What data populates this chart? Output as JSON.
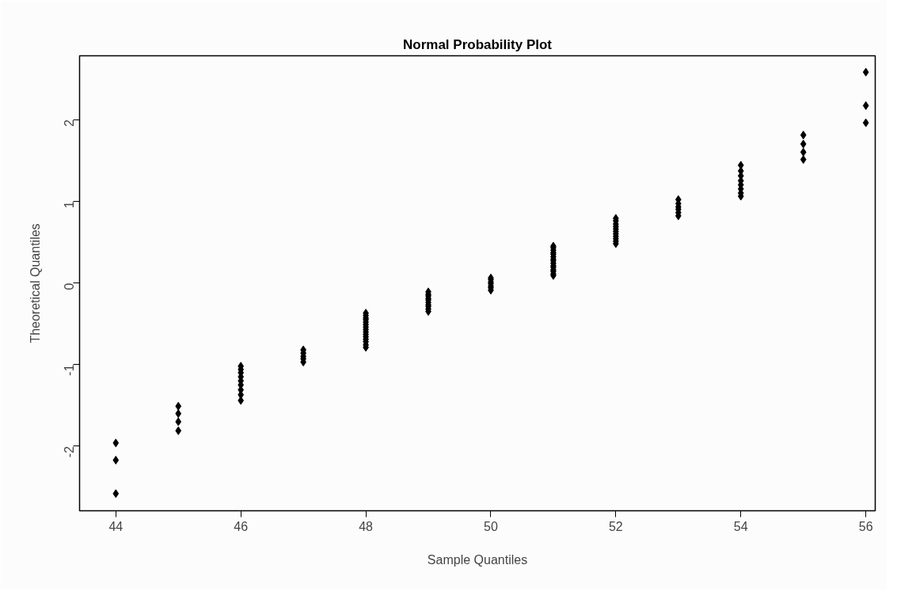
{
  "chart_data": {
    "type": "scatter",
    "title": "Normal Probability Plot",
    "xlabel": "Sample Quantiles",
    "ylabel": "Theoretical Quantiles",
    "x": [
      44,
      44,
      44,
      45,
      45,
      45,
      45,
      46,
      46,
      46,
      46,
      46,
      46,
      46,
      46,
      46,
      47,
      47,
      47,
      47,
      47,
      48,
      48,
      48,
      48,
      48,
      48,
      48,
      48,
      48,
      48,
      48,
      48,
      48,
      48,
      48,
      49,
      49,
      49,
      49,
      49,
      49,
      49,
      49,
      49,
      49,
      50,
      50,
      50,
      50,
      50,
      50,
      50,
      51,
      51,
      51,
      51,
      51,
      51,
      51,
      51,
      51,
      51,
      51,
      51,
      51,
      51,
      51,
      52,
      52,
      52,
      52,
      52,
      52,
      52,
      52,
      52,
      52,
      52,
      53,
      53,
      53,
      53,
      53,
      53,
      54,
      54,
      54,
      54,
      54,
      54,
      54,
      54,
      55,
      55,
      55,
      55,
      56,
      56,
      56
    ],
    "series": [
      {
        "color": "#000000",
        "values": [
          -2.58,
          -2.17,
          -1.96,
          -1.81,
          -1.7,
          -1.6,
          -1.51,
          -1.44,
          -1.37,
          -1.31,
          -1.25,
          -1.2,
          -1.15,
          -1.1,
          -1.06,
          -1.02,
          -0.97,
          -0.93,
          -0.9,
          -0.86,
          -0.82,
          -0.79,
          -0.76,
          -0.72,
          -0.69,
          -0.66,
          -0.63,
          -0.6,
          -0.57,
          -0.54,
          -0.51,
          -0.48,
          -0.45,
          -0.43,
          -0.4,
          -0.37,
          -0.35,
          -0.32,
          -0.29,
          -0.27,
          -0.24,
          -0.21,
          -0.19,
          -0.16,
          -0.14,
          -0.11,
          -0.09,
          -0.06,
          -0.04,
          -0.01,
          0.01,
          0.04,
          0.06,
          0.09,
          0.11,
          0.14,
          0.16,
          0.19,
          0.21,
          0.24,
          0.27,
          0.29,
          0.32,
          0.35,
          0.37,
          0.4,
          0.43,
          0.45,
          0.48,
          0.51,
          0.54,
          0.57,
          0.6,
          0.63,
          0.66,
          0.69,
          0.72,
          0.76,
          0.79,
          0.82,
          0.86,
          0.9,
          0.93,
          0.97,
          1.02,
          1.06,
          1.1,
          1.15,
          1.2,
          1.25,
          1.31,
          1.37,
          1.44,
          1.51,
          1.6,
          1.7,
          1.81,
          1.96,
          2.17,
          2.58
        ]
      }
    ],
    "xlim": [
      43.42,
      56.15
    ],
    "ylim": [
      -2.79,
      2.78
    ],
    "xticks": [
      44,
      46,
      48,
      50,
      52,
      54,
      56
    ],
    "yticks": [
      -2,
      -1,
      0,
      1,
      2
    ],
    "marker": "diamond",
    "grid": false
  }
}
